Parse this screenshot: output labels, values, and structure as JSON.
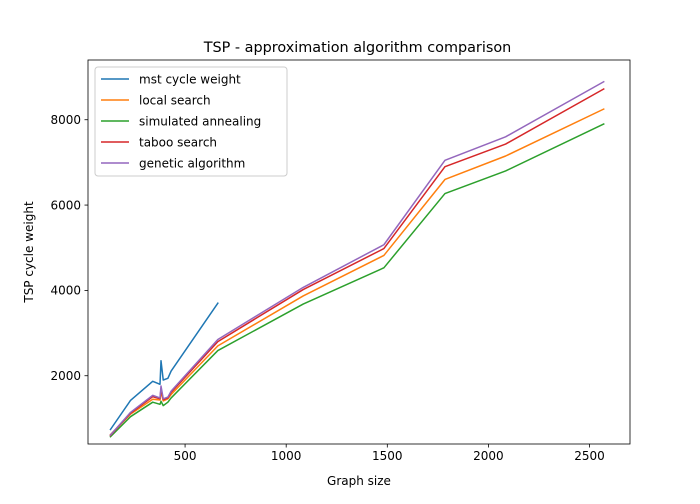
{
  "chart_data": {
    "type": "line",
    "title": "TSP - approximation algorithm comparison",
    "xlabel": "Graph size",
    "ylabel": "TSP cycle weight",
    "xlim": [
      20,
      2700
    ],
    "ylim": [
      400,
      9400
    ],
    "xticks": [
      500,
      1000,
      1500,
      2000,
      2500
    ],
    "yticks": [
      2000,
      4000,
      6000,
      8000
    ],
    "grid": false,
    "legend_position": "upper-left",
    "series": [
      {
        "name": "mst cycle weight",
        "color": "#1f77b4",
        "points": [
          [
            131,
            740
          ],
          [
            230,
            1420
          ],
          [
            340,
            1870
          ],
          [
            376,
            1800
          ],
          [
            381,
            2350
          ],
          [
            392,
            1900
          ],
          [
            415,
            1940
          ],
          [
            431,
            2110
          ],
          [
            662,
            3700
          ]
        ]
      },
      {
        "name": "local search",
        "color": "#ff7f0e",
        "points": [
          [
            131,
            620
          ],
          [
            230,
            1100
          ],
          [
            340,
            1450
          ],
          [
            376,
            1430
          ],
          [
            381,
            1630
          ],
          [
            392,
            1410
          ],
          [
            415,
            1460
          ],
          [
            431,
            1560
          ],
          [
            662,
            2700
          ],
          [
            1084,
            3870
          ],
          [
            1483,
            4820
          ],
          [
            1785,
            6600
          ],
          [
            2085,
            7150
          ],
          [
            2570,
            8250
          ]
        ]
      },
      {
        "name": "simulated annealing",
        "color": "#2ca02c",
        "points": [
          [
            131,
            570
          ],
          [
            230,
            1040
          ],
          [
            340,
            1380
          ],
          [
            376,
            1330
          ],
          [
            381,
            1400
          ],
          [
            392,
            1300
          ],
          [
            415,
            1380
          ],
          [
            431,
            1480
          ],
          [
            662,
            2590
          ],
          [
            1084,
            3680
          ],
          [
            1483,
            4530
          ],
          [
            1785,
            6270
          ],
          [
            2085,
            6800
          ],
          [
            2570,
            7900
          ]
        ]
      },
      {
        "name": "taboo search",
        "color": "#d62728",
        "points": [
          [
            131,
            600
          ],
          [
            230,
            1120
          ],
          [
            340,
            1510
          ],
          [
            376,
            1460
          ],
          [
            381,
            1700
          ],
          [
            392,
            1440
          ],
          [
            415,
            1480
          ],
          [
            431,
            1610
          ],
          [
            662,
            2800
          ],
          [
            1084,
            4020
          ],
          [
            1483,
            4980
          ],
          [
            1785,
            6900
          ],
          [
            2085,
            7430
          ],
          [
            2570,
            8720
          ]
        ]
      },
      {
        "name": "genetic algorithm",
        "color": "#9467bd",
        "points": [
          [
            131,
            610
          ],
          [
            230,
            1140
          ],
          [
            340,
            1540
          ],
          [
            376,
            1480
          ],
          [
            381,
            1760
          ],
          [
            392,
            1460
          ],
          [
            415,
            1500
          ],
          [
            431,
            1640
          ],
          [
            662,
            2850
          ],
          [
            1084,
            4070
          ],
          [
            1483,
            5070
          ],
          [
            1785,
            7050
          ],
          [
            2085,
            7600
          ],
          [
            2570,
            8890
          ]
        ]
      }
    ]
  }
}
